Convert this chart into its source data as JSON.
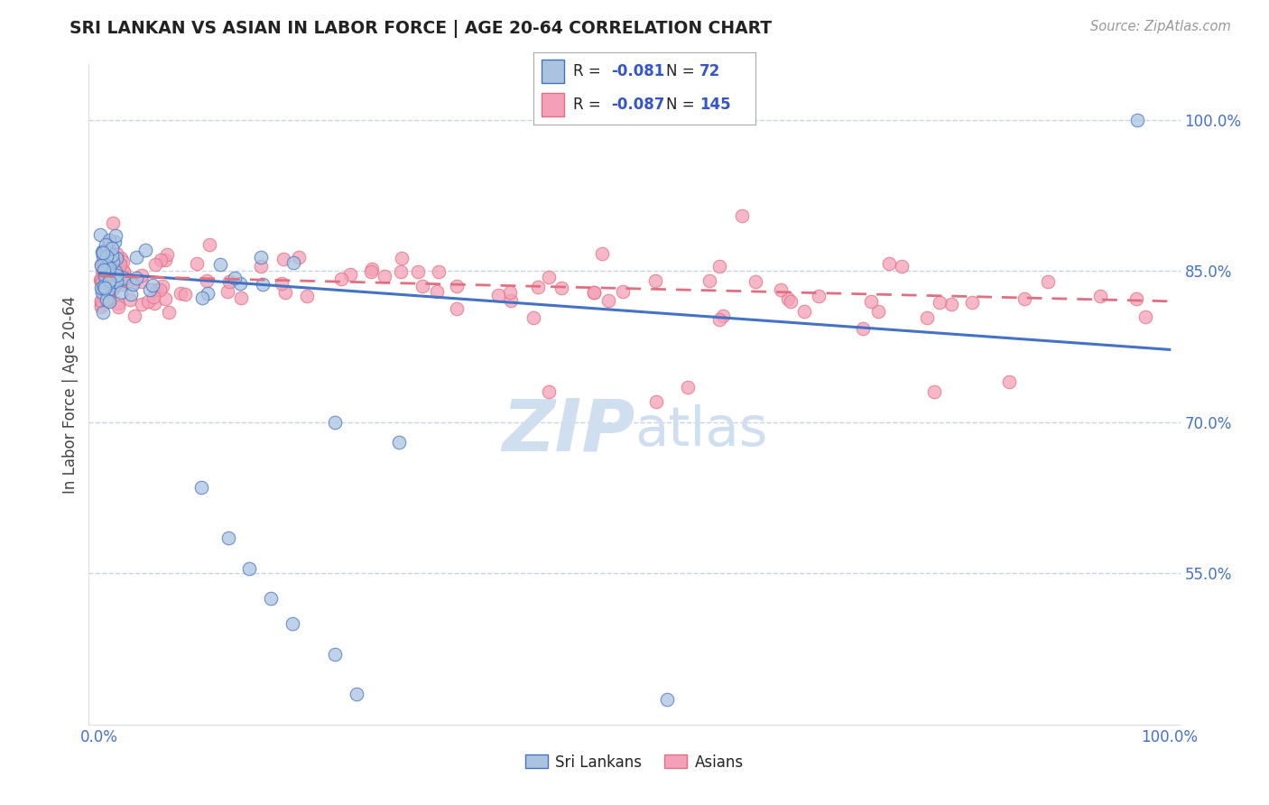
{
  "title": "SRI LANKAN VS ASIAN IN LABOR FORCE | AGE 20-64 CORRELATION CHART",
  "source": "Source: ZipAtlas.com",
  "ylabel": "In Labor Force | Age 20-64",
  "xlim": [
    -0.01,
    1.01
  ],
  "ylim": [
    0.4,
    1.055
  ],
  "ytick_vals": [
    0.55,
    0.7,
    0.85,
    1.0
  ],
  "ytick_labels": [
    "55.0%",
    "70.0%",
    "85.0%",
    "100.0%"
  ],
  "xtick_vals": [
    0.0,
    1.0
  ],
  "xtick_labels": [
    "0.0%",
    "100.0%"
  ],
  "legend_r_sri": "-0.081",
  "legend_n_sri": "72",
  "legend_r_asian": "-0.087",
  "legend_n_asian": "145",
  "sri_face_color": "#aac4e0",
  "sri_edge_color": "#4472c4",
  "asian_face_color": "#f4a0b8",
  "asian_edge_color": "#e07080",
  "sri_line_color": "#4472c4",
  "asian_line_color": "#e07080",
  "grid_color": "#c8d4e8",
  "background_color": "#ffffff",
  "watermark_color": "#d0dff0",
  "title_color": "#222222",
  "source_color": "#999999",
  "tick_color": "#4472c4",
  "ylabel_color": "#444444",
  "legend_text_color": "#222222",
  "legend_val_color": "#3355cc",
  "sri_intercept": 0.848,
  "sri_slope": -0.076,
  "asian_intercept": 0.845,
  "asian_slope": -0.025
}
